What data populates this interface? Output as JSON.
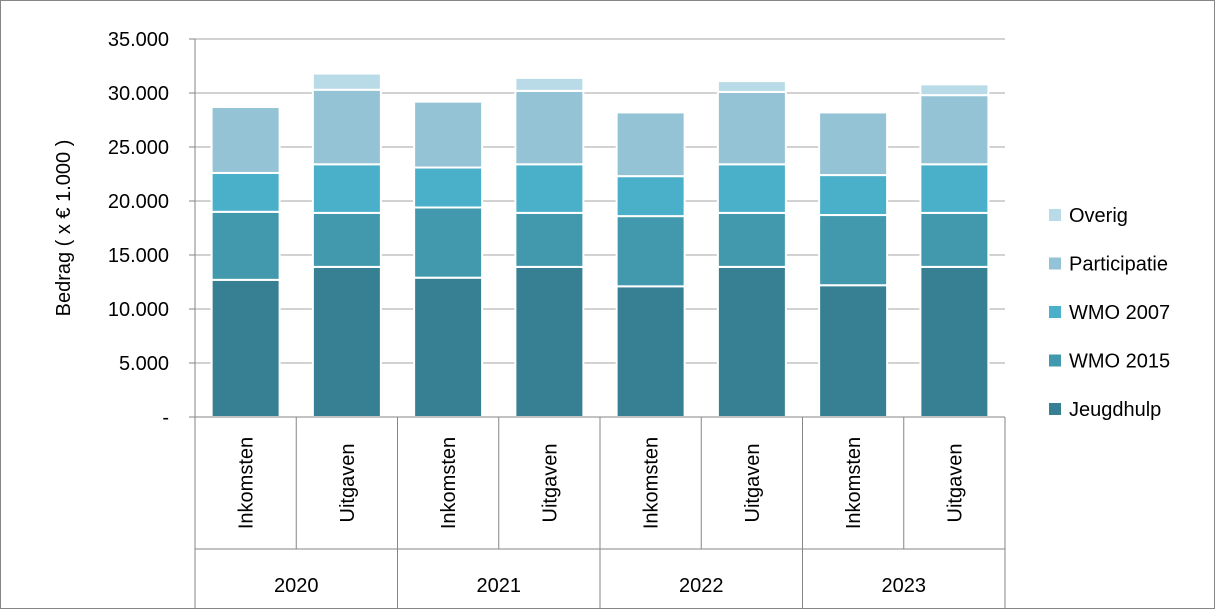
{
  "chart_data": {
    "type": "bar",
    "stacked": true,
    "ylabel": "Bedrag ( x € 1.000 )",
    "xlabel": "",
    "ylim": [
      0,
      35000
    ],
    "yticks": [
      0,
      5000,
      10000,
      15000,
      20000,
      25000,
      30000,
      35000
    ],
    "ytick_labels": [
      "-",
      "5.000",
      "10.000",
      "15.000",
      "20.000",
      "25.000",
      "30.000",
      "35.000"
    ],
    "grid": true,
    "legend_position": "right",
    "groups": [
      "2020",
      "2021",
      "2022",
      "2023"
    ],
    "categories": [
      {
        "group": "2020",
        "label": "Inkomsten"
      },
      {
        "group": "2020",
        "label": "Uitgaven"
      },
      {
        "group": "2021",
        "label": "Inkomsten"
      },
      {
        "group": "2021",
        "label": "Uitgaven"
      },
      {
        "group": "2022",
        "label": "Inkomsten"
      },
      {
        "group": "2022",
        "label": "Uitgaven"
      },
      {
        "group": "2023",
        "label": "Inkomsten"
      },
      {
        "group": "2023",
        "label": "Uitgaven"
      }
    ],
    "series": [
      {
        "name": "Jeugdhulp",
        "color": "#377f92",
        "values": [
          12700,
          13900,
          12900,
          13900,
          12100,
          13900,
          12200,
          13900
        ]
      },
      {
        "name": "WMO 2015",
        "color": "#4299ae",
        "values": [
          6300,
          5000,
          6500,
          5000,
          6500,
          5000,
          6500,
          5000
        ]
      },
      {
        "name": "WMO 2007",
        "color": "#4aafc8",
        "values": [
          3600,
          4500,
          3700,
          4500,
          3700,
          4500,
          3700,
          4500
        ]
      },
      {
        "name": "Participatie",
        "color": "#93c3d4",
        "values": [
          6100,
          6900,
          6100,
          6800,
          5900,
          6700,
          5800,
          6400
        ]
      },
      {
        "name": "Overig",
        "color": "#b9dbe8",
        "values": [
          0,
          1500,
          0,
          1200,
          0,
          1000,
          0,
          1000
        ]
      }
    ]
  }
}
